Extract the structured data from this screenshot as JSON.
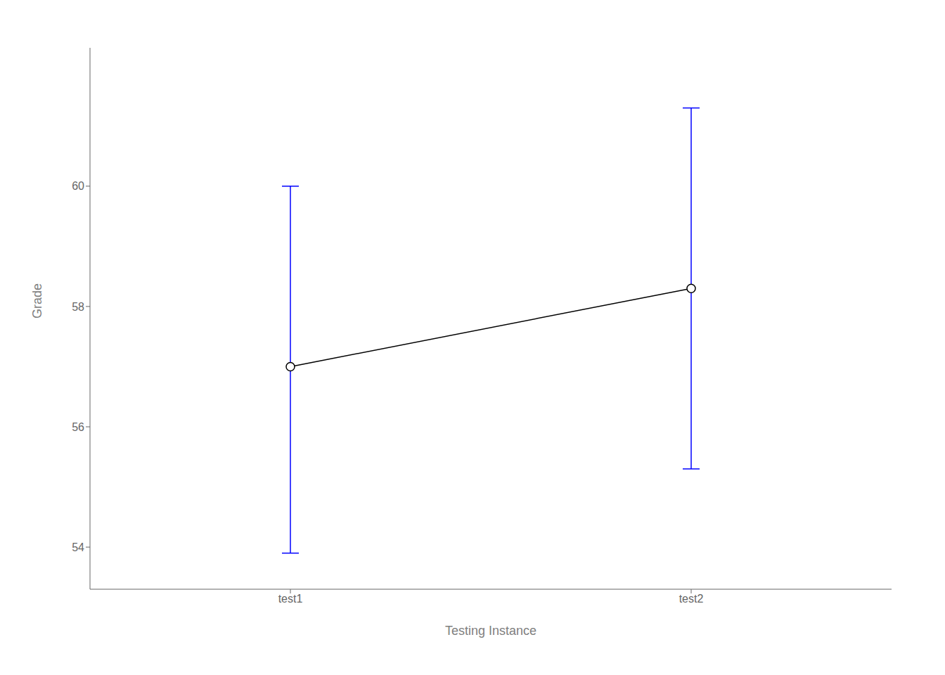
{
  "chart_data": {
    "type": "line",
    "categories": [
      "test1",
      "test2"
    ],
    "values": [
      57.0,
      58.3
    ],
    "color": "#000000",
    "marker": "circle",
    "error_bars": {
      "lower": [
        53.9,
        55.3
      ],
      "upper": [
        60.0,
        61.3
      ],
      "color": "#0000FF"
    },
    "xlabel": "Testing Instance",
    "ylabel": "Grade",
    "ylim": [
      53.3,
      62.3
    ],
    "yticks": [
      54,
      56,
      58,
      60
    ],
    "grid": false
  }
}
